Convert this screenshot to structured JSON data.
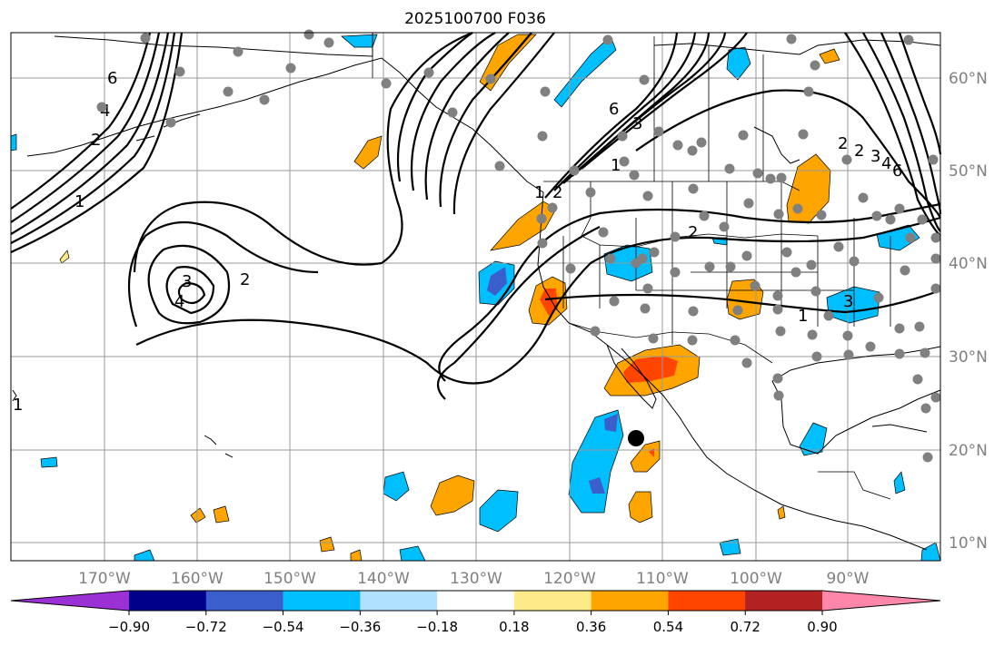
{
  "title": "2025100700 F036",
  "lon_labels": [
    "170°W",
    "160°W",
    "150°W",
    "140°W",
    "130°W",
    "120°W",
    "110°W",
    "100°W",
    "90°W"
  ],
  "lat_labels": [
    "60°N",
    "50°N",
    "40°N",
    "30°N",
    "20°N",
    "10°N"
  ],
  "contour_labels": [
    "6",
    "4",
    "2",
    "1",
    "3",
    "2",
    "4",
    "6",
    "3",
    "1",
    "2",
    "2",
    "1",
    "3",
    "2",
    "1",
    "2",
    "3",
    "4",
    "6",
    "1"
  ],
  "colorbar": {
    "tick_labels": [
      "−0.90",
      "−0.72",
      "−0.54",
      "−0.36",
      "−0.18",
      "0.18",
      "0.36",
      "0.54",
      "0.72",
      "0.90"
    ],
    "colors": [
      "#9b30d4",
      "#00008b",
      "#3a5fcd",
      "#00bfff",
      "#b0e2ff",
      "#ffffff",
      "#fdeb8a",
      "#ffa500",
      "#ff4500",
      "#b22222",
      "#ff88aa"
    ]
  },
  "shading_colors": {
    "blue_light": "#00bfff",
    "blue_mid": "#3a5fcd",
    "orange": "#ffa500",
    "red": "#ff4500",
    "yellow": "#fdeb8a"
  },
  "marker_color": "#000000",
  "station_color": "#808080"
}
